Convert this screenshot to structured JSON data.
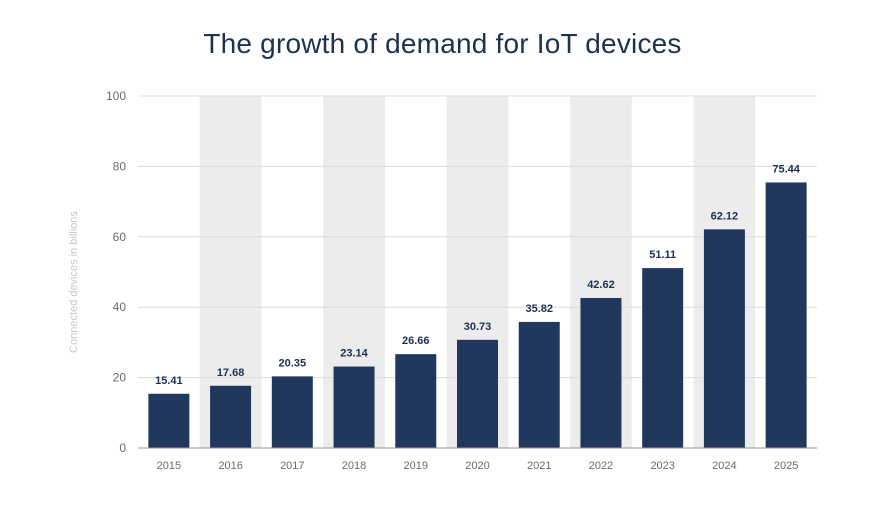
{
  "chart_data": {
    "type": "bar",
    "title": "The growth of demand for IoT devices",
    "ylabel": "Connected devices in billions",
    "xlabel": "",
    "categories": [
      "2015",
      "2016",
      "2017",
      "2018",
      "2019",
      "2020",
      "2021",
      "2022",
      "2023",
      "2024",
      "2025"
    ],
    "values": [
      15.41,
      17.68,
      20.35,
      23.14,
      26.66,
      30.73,
      35.82,
      42.62,
      51.11,
      62.12,
      75.44
    ],
    "value_labels": [
      "15.41",
      "17.68",
      "20.35",
      "23.14",
      "26.66",
      "30.73",
      "35.82",
      "42.62",
      "51.11",
      "62.12",
      "75.44"
    ],
    "ylim": [
      0,
      100
    ],
    "yticks": [
      0,
      20,
      40,
      60,
      80,
      100
    ],
    "ytick_labels": [
      "0",
      "20",
      "40",
      "60",
      "80",
      "100"
    ],
    "grid": true,
    "legend": "none",
    "colors": {
      "bar": "#22375e",
      "value_label": "#1e2f52",
      "title": "#1f3150",
      "band": "#ececec",
      "gridline": "#dcdcdc",
      "axis": "#999999"
    }
  }
}
